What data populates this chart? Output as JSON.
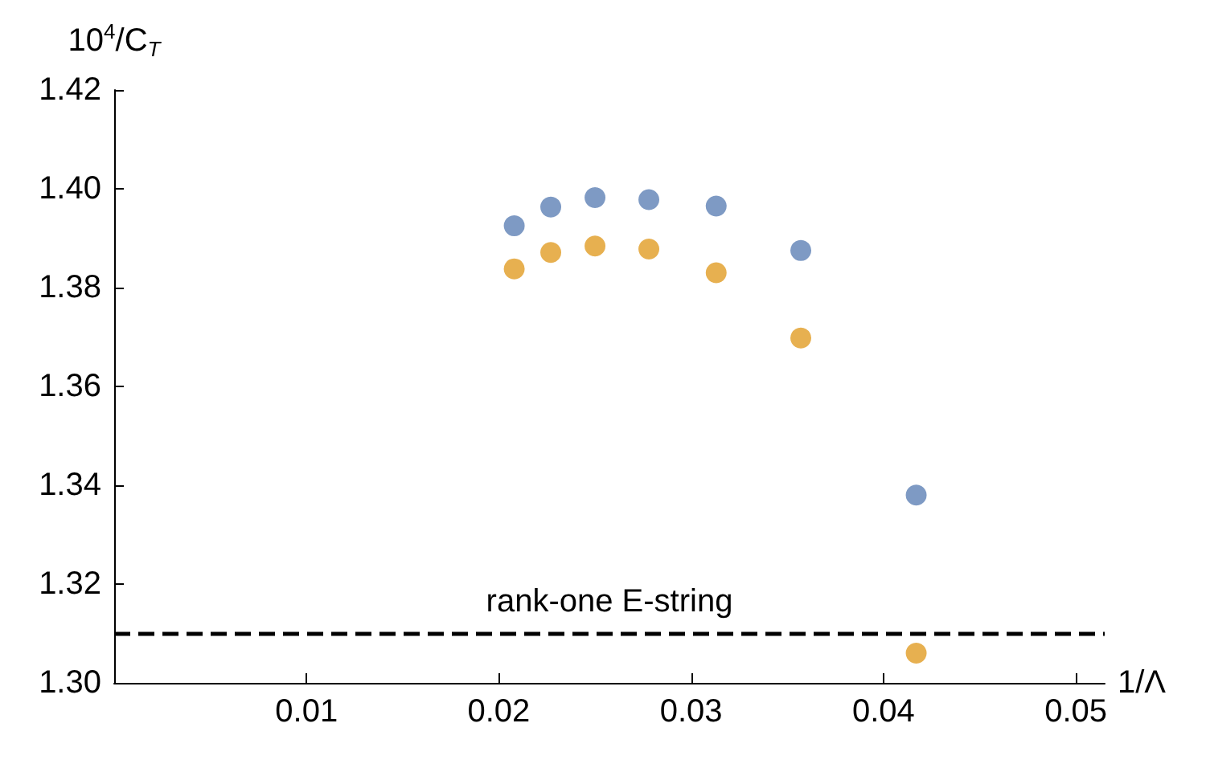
{
  "chart_data": {
    "type": "scatter",
    "xlabel": "1/Λ",
    "ylabel": "10$^{4}$/C$_{T}$",
    "xlim": [
      0,
      0.0515
    ],
    "xticks": [
      0.01,
      0.02,
      0.03,
      0.04,
      0.05
    ],
    "ylim": [
      1.3,
      1.42
    ],
    "yticks": [
      {
        "value": 1.3,
        "label": "1.30"
      },
      1.32,
      1.34,
      1.36,
      1.38,
      {
        "value": 1.4,
        "label": "1.40"
      },
      1.42
    ],
    "grid": false,
    "marker": "circle",
    "series": [
      {
        "color": "#5e81b5",
        "x": [
          0.0208,
          0.0227,
          0.025,
          0.0278,
          0.0313,
          0.0357,
          0.0417
        ],
        "values": [
          1.3925,
          1.3963,
          1.3982,
          1.3978,
          1.3965,
          1.3875,
          1.338
        ]
      },
      {
        "color": "#e19c24",
        "x": [
          0.0208,
          0.0227,
          0.025,
          0.0278,
          0.0313,
          0.0357,
          0.0417
        ],
        "values": [
          1.3838,
          1.3871,
          1.3884,
          1.3878,
          1.383,
          1.3698,
          1.306
        ]
      }
    ],
    "ref_lines": [
      {
        "axis": "y",
        "value": 1.31,
        "label": "rank-one E-string",
        "color": "#000000",
        "line_style": "dashed"
      }
    ]
  }
}
